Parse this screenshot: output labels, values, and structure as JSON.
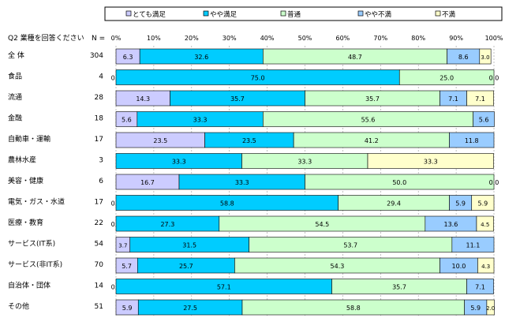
{
  "chart_data": {
    "type": "bar",
    "orientation": "horizontal",
    "stacked": true,
    "title": "",
    "header": {
      "question": "Q2 業種を回答ください",
      "n_label": "N ="
    },
    "xlim": [
      0,
      100
    ],
    "x_ticks": [
      "0%",
      "10%",
      "20%",
      "30%",
      "40%",
      "50%",
      "60%",
      "70%",
      "80%",
      "90%",
      "100%"
    ],
    "grid": true,
    "legend_position": "top",
    "categories": [
      "全 体",
      "食品",
      "流通",
      "金融",
      "自動車・運輸",
      "農林水産",
      "美容・健康",
      "電気・ガス・水道",
      "医療・教育",
      "サービス(IT系)",
      "サービス(非IT系)",
      "自治体・団体",
      "その他"
    ],
    "n": [
      "304",
      "4",
      "28",
      "18",
      "17",
      "3",
      "6",
      "17",
      "22",
      "54",
      "70",
      "14",
      "51"
    ],
    "series": [
      {
        "name": "とても満足",
        "color": "#ccccff",
        "values": [
          6.3,
          0.0,
          14.3,
          5.6,
          23.5,
          0,
          16.7,
          0.0,
          0.0,
          3.7,
          5.7,
          0.0,
          5.9
        ],
        "labels": [
          "6.3",
          "0.0",
          "14.3",
          "5.6",
          "23.5",
          "",
          "16.7",
          "0.0",
          "0.0",
          "3.7",
          "5.7",
          "0.0",
          "5.9"
        ]
      },
      {
        "name": "やや満足",
        "color": "#00ccff",
        "values": [
          32.6,
          75.0,
          35.7,
          33.3,
          23.5,
          33.3,
          33.3,
          58.8,
          27.3,
          31.5,
          25.7,
          57.1,
          27.5
        ],
        "labels": [
          "32.6",
          "75.0",
          "35.7",
          "33.3",
          "23.5",
          "33.3",
          "33.3",
          "58.8",
          "27.3",
          "31.5",
          "25.7",
          "57.1",
          "27.5"
        ]
      },
      {
        "name": "普通",
        "color": "#ccffcc",
        "values": [
          48.7,
          25.0,
          35.7,
          55.6,
          41.2,
          33.3,
          50.0,
          29.4,
          54.5,
          53.7,
          54.3,
          35.7,
          58.8
        ],
        "labels": [
          "48.7",
          "25.0",
          "35.7",
          "55.6",
          "41.2",
          "33.3",
          "50.0",
          "29.4",
          "54.5",
          "53.7",
          "54.3",
          "35.7",
          "58.8"
        ]
      },
      {
        "name": "やや不満",
        "color": "#99ccff",
        "values": [
          8.6,
          0,
          7.1,
          5.6,
          11.8,
          0,
          0,
          5.9,
          13.6,
          11.1,
          10.0,
          7.1,
          5.9
        ],
        "labels": [
          "8.6",
          "",
          "7.1",
          "5.6",
          "11.8",
          "",
          "",
          "5.9",
          "13.6",
          "11.1",
          "10.0",
          "7.1",
          "5.9"
        ]
      },
      {
        "name": "不満",
        "color": "#ffffcc",
        "values": [
          3.0,
          0.0,
          7.1,
          0,
          0,
          33.3,
          0.0,
          5.9,
          4.5,
          0,
          4.3,
          0,
          2.0
        ],
        "labels": [
          "3.0",
          "0.0",
          "7.1",
          "",
          "",
          "33.3",
          "0.0",
          "5.9",
          "4.5",
          "",
          "4.3",
          "",
          "2.0"
        ]
      }
    ]
  }
}
